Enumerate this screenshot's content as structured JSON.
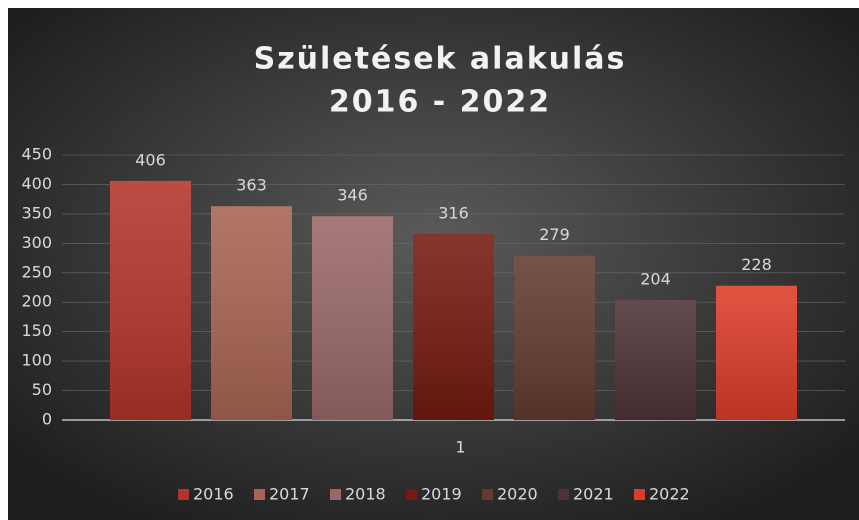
{
  "chart_data": {
    "type": "bar",
    "title": "Születések alakulás",
    "subtitle": "2016 - 2022",
    "categories": [
      "1"
    ],
    "series": [
      {
        "name": "2016",
        "color": "#b3342a",
        "values": [
          406
        ]
      },
      {
        "name": "2017",
        "color": "#a86452",
        "values": [
          363
        ]
      },
      {
        "name": "2018",
        "color": "#9a6868",
        "values": [
          346
        ]
      },
      {
        "name": "2019",
        "color": "#741a10",
        "values": [
          316
        ]
      },
      {
        "name": "2020",
        "color": "#643a30",
        "values": [
          279
        ]
      },
      {
        "name": "2021",
        "color": "#4e3236",
        "values": [
          204
        ]
      },
      {
        "name": "2022",
        "color": "#dc3c28",
        "values": [
          228
        ]
      }
    ],
    "ylim": [
      0,
      450
    ],
    "yticks": [
      0,
      50,
      100,
      150,
      200,
      250,
      300,
      350,
      400,
      450
    ],
    "grid": true,
    "legend": "bottom"
  }
}
